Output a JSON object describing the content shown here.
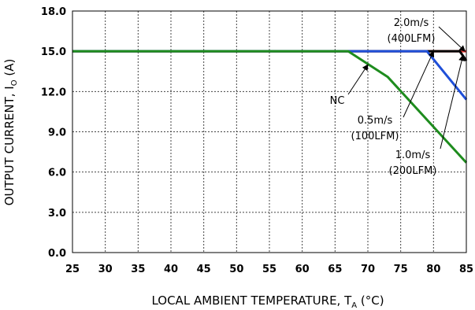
{
  "chart_data": {
    "type": "line",
    "xlabel": "LOCAL AMBIENT TEMPERATURE, T",
    "xlabel_sub": "A",
    "xlabel_unit": " (°C)",
    "ylabel": "OUTPUT CURRENT, I",
    "ylabel_sub": "O",
    "ylabel_unit": " (A)",
    "xlim": [
      25,
      85
    ],
    "ylim": [
      0,
      18
    ],
    "grid": true,
    "x_ticks": [
      25,
      30,
      35,
      40,
      45,
      50,
      55,
      60,
      65,
      70,
      75,
      80,
      85
    ],
    "y_ticks": [
      0,
      3,
      6,
      9,
      12,
      15,
      18
    ],
    "x_tick_labels": [
      "25",
      "30",
      "35",
      "40",
      "45",
      "50",
      "55",
      "60",
      "65",
      "70",
      "75",
      "80",
      "85"
    ],
    "y_tick_labels": [
      "0.0",
      "3.0",
      "6.0",
      "9.0",
      "12.0",
      "15.0",
      "18.0"
    ],
    "series": [
      {
        "name": "2.0m/s (400LFM)",
        "color": "#e53935",
        "x": [
          25,
          85
        ],
        "y": [
          15,
          15
        ]
      },
      {
        "name": "1.0m/s (200LFM)",
        "color": "#000000",
        "x": [
          25,
          84,
          85
        ],
        "y": [
          15,
          15,
          14.3
        ]
      },
      {
        "name": "0.5m/s (100LFM)",
        "color": "#1f4fd8",
        "x": [
          25,
          79,
          85
        ],
        "y": [
          15,
          15,
          11.4
        ]
      },
      {
        "name": "NC",
        "color": "#1e8c1e",
        "x": [
          25,
          67,
          73,
          85
        ],
        "y": [
          15,
          15,
          13.1,
          6.7
        ]
      }
    ],
    "annotations": [
      {
        "lines": [
          "NC"
        ],
        "arrow_to": [
          70,
          14
        ]
      },
      {
        "lines": [
          "0.5m/s",
          "(100LFM)"
        ],
        "arrow_to": [
          80,
          15
        ]
      },
      {
        "lines": [
          "1.0m/s",
          "(200LFM)"
        ],
        "arrow_to": [
          84.5,
          14.7
        ]
      },
      {
        "lines": [
          "2.0m/s",
          "(400LFM)"
        ],
        "arrow_to": [
          84.8,
          15.0
        ]
      }
    ]
  }
}
